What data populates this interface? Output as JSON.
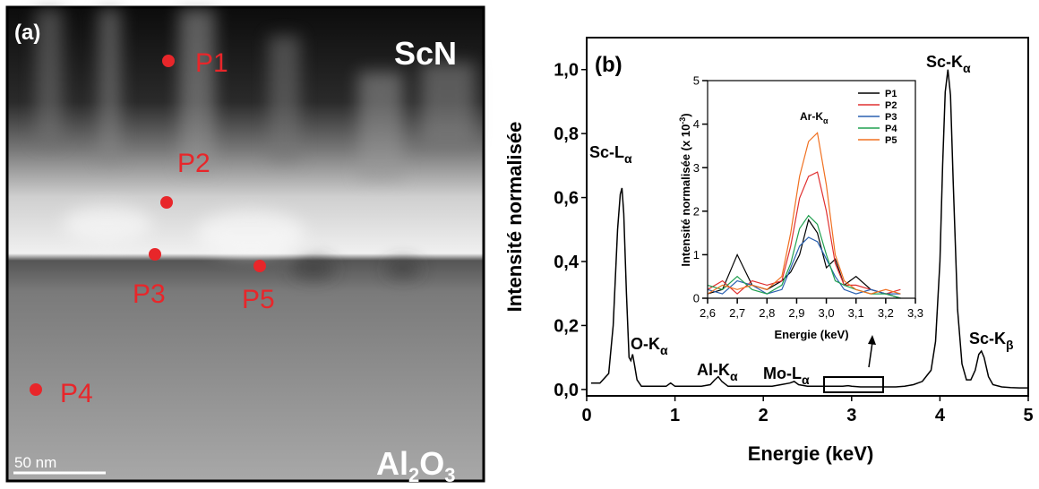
{
  "image": {
    "panel_label": "(a)",
    "top_label": "ScN",
    "bottom_label": [
      "Al",
      "2",
      "O",
      "3"
    ],
    "scale_bar": "50 nm",
    "points": [
      {
        "label": "P1"
      },
      {
        "label": "P2"
      },
      {
        "label": "P3"
      },
      {
        "label": "P4"
      },
      {
        "label": "P5"
      }
    ]
  },
  "chart_data": [
    {
      "type": "line",
      "title": "(b)",
      "x_label": "Energie (keV)",
      "y_label": "Intensité normalisée",
      "xlim": [
        0,
        5
      ],
      "ylim": [
        -0.02,
        1.1
      ],
      "xticks": [
        0,
        1,
        2,
        3,
        4,
        5
      ],
      "yticks": [
        {
          "value": 0,
          "label": "0,0"
        },
        {
          "value": 0.2,
          "label": "0,2"
        },
        {
          "value": 0.4,
          "label": "0,4"
        },
        {
          "value": 0.6,
          "label": "0,6"
        },
        {
          "value": 0.8,
          "label": "0,8"
        },
        {
          "value": 1.0,
          "label": "1,0"
        }
      ],
      "x": [
        0.05,
        0.15,
        0.25,
        0.3,
        0.35,
        0.38,
        0.4,
        0.42,
        0.45,
        0.48,
        0.5,
        0.52,
        0.54,
        0.57,
        0.62,
        0.7,
        0.8,
        0.9,
        0.95,
        1.0,
        1.1,
        1.2,
        1.3,
        1.4,
        1.45,
        1.49,
        1.53,
        1.6,
        1.7,
        1.8,
        1.9,
        2.0,
        2.1,
        2.2,
        2.3,
        2.35,
        2.4,
        2.5,
        2.6,
        2.7,
        2.8,
        2.9,
        2.96,
        3.0,
        3.1,
        3.2,
        3.3,
        3.4,
        3.5,
        3.6,
        3.7,
        3.8,
        3.9,
        3.95,
        4.0,
        4.03,
        4.06,
        4.09,
        4.12,
        4.15,
        4.2,
        4.25,
        4.3,
        4.35,
        4.4,
        4.44,
        4.47,
        4.5,
        4.55,
        4.6,
        4.7,
        4.8,
        4.9,
        5.0
      ],
      "series": [
        {
          "color": "#000000",
          "values": [
            0.02,
            0.02,
            0.05,
            0.2,
            0.5,
            0.61,
            0.63,
            0.55,
            0.3,
            0.1,
            0.09,
            0.11,
            0.08,
            0.03,
            0.01,
            0.01,
            0.01,
            0.01,
            0.02,
            0.01,
            0.01,
            0.01,
            0.01,
            0.015,
            0.03,
            0.04,
            0.025,
            0.01,
            0.01,
            0.01,
            0.01,
            0.01,
            0.01,
            0.015,
            0.02,
            0.025,
            0.015,
            0.01,
            0.01,
            0.01,
            0.01,
            0.01,
            0.012,
            0.01,
            0.008,
            0.008,
            0.008,
            0.008,
            0.008,
            0.01,
            0.015,
            0.025,
            0.06,
            0.15,
            0.4,
            0.7,
            0.93,
            1.0,
            0.92,
            0.65,
            0.25,
            0.08,
            0.03,
            0.03,
            0.06,
            0.11,
            0.12,
            0.1,
            0.04,
            0.015,
            0.008,
            0.006,
            0.005,
            0.005
          ]
        }
      ],
      "annotations": [
        {
          "text": "Sc-L",
          "sub": "α"
        },
        {
          "text": "O-K",
          "sub": "α"
        },
        {
          "text": "Al-K",
          "sub": "α"
        },
        {
          "text": "Mo-L",
          "sub": "α"
        },
        {
          "text": "Sc-K",
          "sub": "α"
        },
        {
          "text": "Sc-K",
          "sub": "β"
        }
      ]
    },
    {
      "type": "line",
      "x_label": "Energie (keV)",
      "y_label": "Intensité normalisée (x 10",
      "y_label_sup": "-3",
      "y_label_end": ")",
      "xlim": [
        2.6,
        3.3
      ],
      "ylim": [
        0,
        5
      ],
      "xticks": [
        {
          "value": 2.6,
          "label": "2,6"
        },
        {
          "value": 2.7,
          "label": "2,7"
        },
        {
          "value": 2.8,
          "label": "2,8"
        },
        {
          "value": 2.9,
          "label": "2,9"
        },
        {
          "value": 3.0,
          "label": "3,0"
        },
        {
          "value": 3.1,
          "label": "3,1"
        },
        {
          "value": 3.2,
          "label": "3,2"
        },
        {
          "value": 3.3,
          "label": "3,3"
        }
      ],
      "yticks": [
        0,
        1,
        2,
        3,
        4,
        5
      ],
      "legend": "upper right",
      "x": [
        2.6,
        2.65,
        2.7,
        2.75,
        2.8,
        2.85,
        2.88,
        2.91,
        2.94,
        2.97,
        3.0,
        3.03,
        3.06,
        3.1,
        3.15,
        3.2,
        3.25
      ],
      "series": [
        {
          "name": "P1",
          "color": "#000000",
          "values": [
            0.1,
            0.2,
            1.0,
            0.3,
            0.2,
            0.4,
            0.6,
            1.0,
            1.8,
            1.5,
            0.7,
            0.9,
            0.3,
            0.5,
            0.2,
            0.1,
            0.0
          ]
        },
        {
          "name": "P2",
          "color": "#e03030",
          "values": [
            0.2,
            0.4,
            0.1,
            0.4,
            0.3,
            0.4,
            1.2,
            2.3,
            2.8,
            2.9,
            2.0,
            0.8,
            0.3,
            0.3,
            0.2,
            0.1,
            0.2
          ]
        },
        {
          "name": "P3",
          "color": "#2a60b0",
          "values": [
            0.2,
            0.1,
            0.4,
            0.3,
            0.1,
            0.2,
            0.7,
            1.2,
            1.4,
            1.3,
            0.9,
            0.5,
            0.2,
            0.1,
            0.2,
            0.1,
            0.1
          ]
        },
        {
          "name": "P4",
          "color": "#20a050",
          "values": [
            0.3,
            0.2,
            0.5,
            0.2,
            0.1,
            0.3,
            0.8,
            1.6,
            1.9,
            1.7,
            1.0,
            0.4,
            0.3,
            0.2,
            0.1,
            0.1,
            0.0
          ]
        },
        {
          "name": "P5",
          "color": "#f07020",
          "values": [
            0.1,
            0.3,
            0.2,
            0.3,
            0.2,
            0.5,
            1.5,
            2.8,
            3.6,
            3.8,
            2.6,
            1.0,
            0.4,
            0.2,
            0.1,
            0.2,
            0.1
          ]
        }
      ],
      "annotations": [
        {
          "text": "Ar-K",
          "sub": "α"
        }
      ]
    }
  ]
}
